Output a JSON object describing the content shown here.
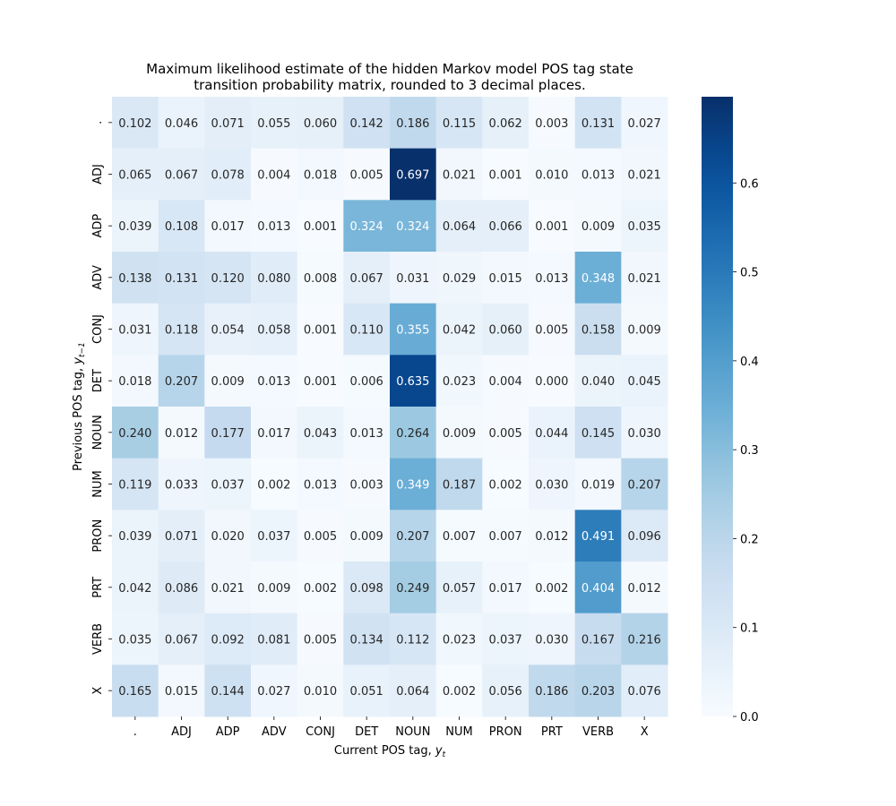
{
  "chart_data": {
    "type": "heatmap",
    "title_lines": [
      "Maximum likelihood estimate of the hidden Markov model POS tag state",
      "transition probability matrix, rounded to 3 decimal places."
    ],
    "xlabel": "Current POS tag,",
    "xlabel_var": "y",
    "xlabel_sub": "t",
    "ylabel": "Previous POS tag,",
    "ylabel_var": "y",
    "ylabel_sub": "t−1",
    "x_categories": [
      ".",
      "ADJ",
      "ADP",
      "ADV",
      "CONJ",
      "DET",
      "NOUN",
      "NUM",
      "PRON",
      "PRT",
      "VERB",
      "X"
    ],
    "y_categories": [
      ".",
      "ADJ",
      "ADP",
      "ADV",
      "CONJ",
      "DET",
      "NOUN",
      "NUM",
      "PRON",
      "PRT",
      "VERB",
      "X"
    ],
    "values": [
      [
        0.102,
        0.046,
        0.071,
        0.055,
        0.06,
        0.142,
        0.186,
        0.115,
        0.062,
        0.003,
        0.131,
        0.027
      ],
      [
        0.065,
        0.067,
        0.078,
        0.004,
        0.018,
        0.005,
        0.697,
        0.021,
        0.001,
        0.01,
        0.013,
        0.021
      ],
      [
        0.039,
        0.108,
        0.017,
        0.013,
        0.001,
        0.324,
        0.324,
        0.064,
        0.066,
        0.001,
        0.009,
        0.035
      ],
      [
        0.138,
        0.131,
        0.12,
        0.08,
        0.008,
        0.067,
        0.031,
        0.029,
        0.015,
        0.013,
        0.348,
        0.021
      ],
      [
        0.031,
        0.118,
        0.054,
        0.058,
        0.001,
        0.11,
        0.355,
        0.042,
        0.06,
        0.005,
        0.158,
        0.009
      ],
      [
        0.018,
        0.207,
        0.009,
        0.013,
        0.001,
        0.006,
        0.635,
        0.023,
        0.004,
        0.0,
        0.04,
        0.045
      ],
      [
        0.24,
        0.012,
        0.177,
        0.017,
        0.043,
        0.013,
        0.264,
        0.009,
        0.005,
        0.044,
        0.145,
        0.03
      ],
      [
        0.119,
        0.033,
        0.037,
        0.002,
        0.013,
        0.003,
        0.349,
        0.187,
        0.002,
        0.03,
        0.019,
        0.207
      ],
      [
        0.039,
        0.071,
        0.02,
        0.037,
        0.005,
        0.009,
        0.207,
        0.007,
        0.007,
        0.012,
        0.491,
        0.096
      ],
      [
        0.042,
        0.086,
        0.021,
        0.009,
        0.002,
        0.098,
        0.249,
        0.057,
        0.017,
        0.002,
        0.404,
        0.012
      ],
      [
        0.035,
        0.067,
        0.092,
        0.081,
        0.005,
        0.134,
        0.112,
        0.023,
        0.037,
        0.03,
        0.167,
        0.216
      ],
      [
        0.165,
        0.015,
        0.144,
        0.027,
        0.01,
        0.051,
        0.064,
        0.002,
        0.056,
        0.186,
        0.203,
        0.076
      ]
    ],
    "value_format": "3 decimal places",
    "colormap": "Blues",
    "colorbar": {
      "min": 0.0,
      "max": 0.697,
      "ticks": [
        0.0,
        0.1,
        0.2,
        0.3,
        0.4,
        0.5,
        0.6
      ],
      "tick_labels": [
        "0.0",
        "0.1",
        "0.2",
        "0.3",
        "0.4",
        "0.5",
        "0.6"
      ],
      "placement": "right"
    },
    "grid": false
  }
}
